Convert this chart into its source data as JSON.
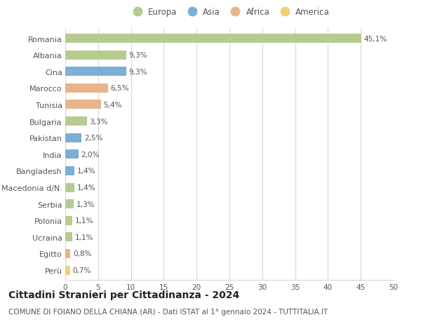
{
  "countries": [
    "Romania",
    "Albania",
    "Cina",
    "Marocco",
    "Tunisia",
    "Bulgaria",
    "Pakistan",
    "India",
    "Bangladesh",
    "Macedonia d/N.",
    "Serbia",
    "Polonia",
    "Ucraina",
    "Egitto",
    "Perù"
  ],
  "values": [
    45.1,
    9.3,
    9.3,
    6.5,
    5.4,
    3.3,
    2.5,
    2.0,
    1.4,
    1.4,
    1.3,
    1.1,
    1.1,
    0.8,
    0.7
  ],
  "labels": [
    "45,1%",
    "9,3%",
    "9,3%",
    "6,5%",
    "5,4%",
    "3,3%",
    "2,5%",
    "2,0%",
    "1,4%",
    "1,4%",
    "1,3%",
    "1,1%",
    "1,1%",
    "0,8%",
    "0,7%"
  ],
  "colors": [
    "#b5cc8e",
    "#b5cc8e",
    "#7bafd4",
    "#e8b48a",
    "#e8b48a",
    "#b5cc8e",
    "#7bafd4",
    "#7bafd4",
    "#7bafd4",
    "#b5cc8e",
    "#b5cc8e",
    "#b5cc8e",
    "#b5cc8e",
    "#e8b48a",
    "#f0d070"
  ],
  "legend_labels": [
    "Europa",
    "Asia",
    "Africa",
    "America"
  ],
  "legend_colors": [
    "#b5cc8e",
    "#7bafd4",
    "#e8b48a",
    "#f0d070"
  ],
  "title": "Cittadini Stranieri per Cittadinanza - 2024",
  "subtitle": "COMUNE DI FOIANO DELLA CHIANA (AR) - Dati ISTAT al 1° gennaio 2024 - TUTTITALIA.IT",
  "xlim": [
    0,
    50
  ],
  "xticks": [
    0,
    5,
    10,
    15,
    20,
    25,
    30,
    35,
    40,
    45,
    50
  ],
  "background_color": "#ffffff",
  "grid_color": "#d8d8d8",
  "bar_height": 0.55,
  "label_fontsize": 7.5,
  "tick_fontsize": 7.5,
  "ytick_fontsize": 8,
  "title_fontsize": 10,
  "subtitle_fontsize": 7.5,
  "text_color": "#555555"
}
